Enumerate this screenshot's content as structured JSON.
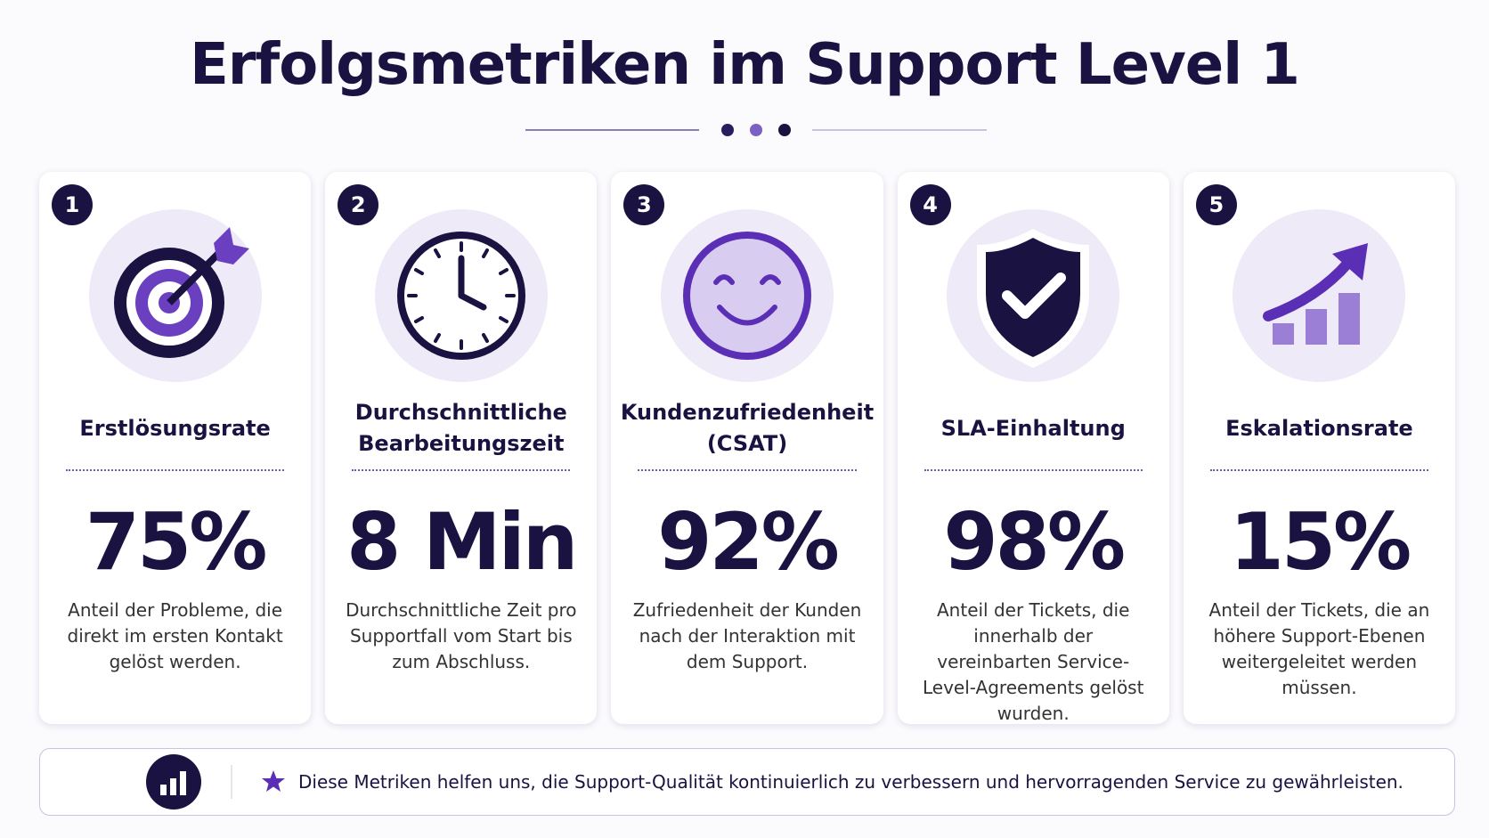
{
  "header": {
    "title": "Erfolgsmetriken im Support Level 1"
  },
  "cards": [
    {
      "number": "1",
      "label": "Erstlösungsrate",
      "value": "75%",
      "description": "Anteil der Probleme, die direkt im ersten Kontakt gelöst werden."
    },
    {
      "number": "2",
      "label": "Durchschnittliche Bearbeitungszeit",
      "value": "8 Min",
      "description": "Durchschnittliche Zeit pro Supportfall vom Start bis zum Abschluss."
    },
    {
      "number": "3",
      "label": "Kundenzufriedenheit (CSAT)",
      "value": "92%",
      "description": "Zufriedenheit der Kunden nach der Interaktion mit dem Support."
    },
    {
      "number": "4",
      "label": "SLA-Einhaltung",
      "value": "98%",
      "description": "Anteil der Tickets, die innerhalb der vereinbarten Service-Level-Agreements gelöst wurden."
    },
    {
      "number": "5",
      "label": "Eskalationsrate",
      "value": "15%",
      "description": "Anteil der Tickets, die an höhere Support-Ebenen weitergeleitet werden müssen."
    }
  ],
  "footer": {
    "text": "Diese Metriken helfen uns, die Support-Qualität kontinuierlich zu verbessern und hervorragenden Service zu gewährleisten."
  }
}
